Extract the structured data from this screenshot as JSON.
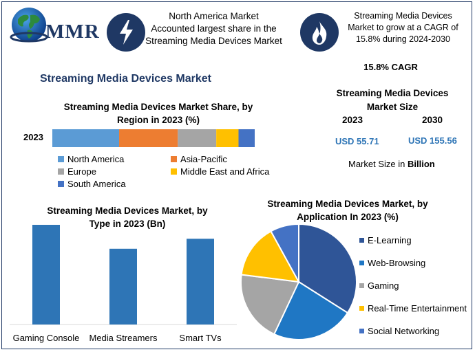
{
  "logo": {
    "text": "MMR"
  },
  "header": {
    "box1": {
      "icon": "lightning-bolt-icon",
      "lines": [
        "North America Market",
        "Accounted largest share in the",
        "Streaming Media Devices Market"
      ]
    },
    "box2": {
      "icon": "flame-icon",
      "lines": [
        "Streaming Media Devices",
        "Market to grow at a CAGR of",
        "15.8% during 2024-2030"
      ]
    }
  },
  "main_title": "Streaming Media Devices Market",
  "cagr_panel": {
    "cagr_label": "15.8% CAGR",
    "size_title_lines": [
      "Streaming Media Devices",
      "Market Size"
    ],
    "year_a": "2023",
    "year_b": "2030",
    "value_a": "USD 55.71",
    "value_b": "USD 155.56",
    "unit_prefix": "Market Size in ",
    "unit_bold": "Billion"
  },
  "colors": {
    "dark_navy": "#1f3864",
    "north_america": "#5b9bd5",
    "asia_pacific": "#ed7d31",
    "europe": "#a5a5a5",
    "mea": "#ffc000",
    "south_america": "#4472c4",
    "type_bar": "#2e75b6",
    "elearning": "#2f5597",
    "web_browsing": "#1f77c4",
    "gaming": "#a5a5a5",
    "rte": "#ffc000",
    "social": "#4472c4"
  },
  "chart_data": [
    {
      "type": "bar",
      "orientation": "horizontal-stacked",
      "title_lines": [
        "Streaming Media Devices Market Share, by",
        "Region in 2023 (%)"
      ],
      "categories": [
        "2023"
      ],
      "series": [
        {
          "name": "North America",
          "values": [
            33
          ],
          "color": "#5b9bd5"
        },
        {
          "name": "Asia-Pacific",
          "values": [
            29
          ],
          "color": "#ed7d31"
        },
        {
          "name": "Europe",
          "values": [
            19
          ],
          "color": "#a5a5a5"
        },
        {
          "name": "Middle East and Africa",
          "values": [
            11
          ],
          "color": "#ffc000"
        },
        {
          "name": "South America",
          "values": [
            8
          ],
          "color": "#4472c4"
        }
      ],
      "legend": "bottom",
      "grid": false
    },
    {
      "type": "bar",
      "title_lines": [
        "Streaming Media Devices Market, by",
        "Type in 2023 (Bn)"
      ],
      "categories": [
        "Gaming Console",
        "Media Streamers",
        "Smart TVs"
      ],
      "values": [
        25,
        19,
        21.5
      ],
      "ylim": [
        0,
        25
      ],
      "grid": false
    },
    {
      "type": "pie",
      "title_lines": [
        "Streaming Media Devices Market, by",
        "Application In 2023 (%)"
      ],
      "labels": [
        "E-Learning",
        "Web-Browsing",
        "Gaming",
        "Real-Time Entertainment",
        "Social Networking"
      ],
      "values": [
        34,
        23,
        20,
        15,
        8
      ],
      "colors": [
        "#2f5597",
        "#1f77c4",
        "#a5a5a5",
        "#ffc000",
        "#4472c4"
      ],
      "legend": "right"
    }
  ]
}
